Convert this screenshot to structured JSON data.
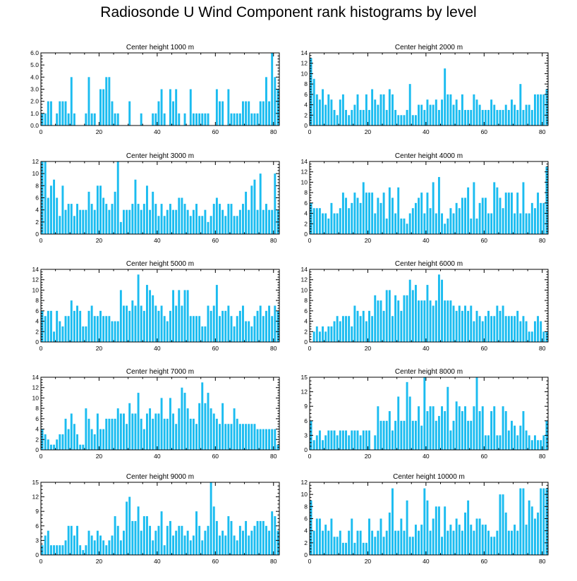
{
  "figure_title": "Radiosonde U Wind Component rank histograms by level",
  "colors": {
    "bar": "#1bbcf0",
    "axis": "#000000",
    "background": "#ffffff"
  },
  "chart_data": [
    {
      "type": "bar",
      "title": "Center height 1000 m",
      "xlim": [
        0,
        82
      ],
      "ylim": [
        0,
        6
      ],
      "xticks": [
        "0",
        "20",
        "40",
        "60",
        "80"
      ],
      "yticks": [
        "0.0",
        "1.0",
        "2.0",
        "3.0",
        "4.0",
        "5.0",
        "6.0"
      ],
      "values": [
        1,
        1,
        2,
        2,
        0,
        1,
        2,
        2,
        2,
        1,
        4,
        1,
        0,
        0,
        0,
        1,
        4,
        1,
        1,
        0,
        3,
        3,
        4,
        4,
        2,
        1,
        1,
        0,
        0,
        0,
        2,
        0,
        0,
        0,
        1,
        0,
        0,
        0,
        1,
        1,
        2,
        3,
        1,
        0,
        3,
        2,
        3,
        1,
        0,
        1,
        0,
        3,
        1,
        1,
        1,
        1,
        1,
        1,
        0,
        0,
        3,
        2,
        2,
        0,
        3,
        1,
        1,
        1,
        1,
        2,
        2,
        2,
        1,
        1,
        1,
        2,
        2,
        4,
        2,
        6,
        4,
        3
      ]
    },
    {
      "type": "bar",
      "title": "Center height 2000 m",
      "xlim": [
        0,
        82
      ],
      "ylim": [
        0,
        14
      ],
      "xticks": [
        "0",
        "20",
        "40",
        "60",
        "80"
      ],
      "yticks": [
        "0",
        "2",
        "4",
        "6",
        "8",
        "10",
        "12",
        "14"
      ],
      "values": [
        13,
        9,
        6,
        5,
        7,
        4,
        6,
        5,
        3,
        2,
        5,
        6,
        3,
        2,
        3,
        4,
        6,
        3,
        3,
        6,
        3,
        7,
        5,
        4,
        6,
        6,
        3,
        7,
        6,
        3,
        2,
        2,
        2,
        3,
        8,
        2,
        2,
        4,
        4,
        3,
        5,
        4,
        4,
        5,
        3,
        5,
        11,
        6,
        6,
        4,
        5,
        3,
        6,
        3,
        3,
        3,
        6,
        5,
        4,
        3,
        3,
        3,
        5,
        4,
        3,
        3,
        3,
        4,
        3,
        5,
        4,
        3,
        8,
        3,
        4,
        4,
        3,
        6,
        6,
        6,
        6,
        7
      ]
    },
    {
      "type": "bar",
      "title": "Center height 3000 m",
      "xlim": [
        0,
        82
      ],
      "ylim": [
        0,
        12
      ],
      "xticks": [
        "0",
        "20",
        "40",
        "60",
        "80"
      ],
      "yticks": [
        "0",
        "2",
        "4",
        "6",
        "8",
        "10",
        "12"
      ],
      "values": [
        12,
        12,
        6,
        8,
        9,
        6,
        3,
        8,
        4,
        5,
        5,
        3,
        5,
        4,
        4,
        4,
        7,
        5,
        4,
        8,
        8,
        6,
        5,
        4,
        5,
        7,
        12,
        2,
        4,
        4,
        4,
        5,
        9,
        5,
        4,
        5,
        8,
        4,
        7,
        5,
        3,
        5,
        3,
        4,
        5,
        4,
        4,
        6,
        6,
        5,
        4,
        3,
        4,
        5,
        3,
        3,
        4,
        2,
        3,
        5,
        6,
        5,
        4,
        3,
        5,
        5,
        3,
        3,
        4,
        5,
        7,
        4,
        8,
        9,
        4,
        10,
        4,
        5,
        4,
        4,
        10,
        4
      ]
    },
    {
      "type": "bar",
      "title": "Center height 4000 m",
      "xlim": [
        0,
        82
      ],
      "ylim": [
        0,
        14
      ],
      "xticks": [
        "0",
        "20",
        "40",
        "60",
        "80"
      ],
      "yticks": [
        "0",
        "2",
        "4",
        "6",
        "8",
        "10",
        "12",
        "14"
      ],
      "values": [
        6,
        5,
        5,
        5,
        4,
        4,
        3,
        6,
        4,
        4,
        5,
        8,
        7,
        5,
        6,
        8,
        7,
        6,
        10,
        8,
        8,
        8,
        4,
        7,
        6,
        8,
        3,
        9,
        7,
        4,
        9,
        3,
        3,
        2,
        4,
        5,
        6,
        7,
        8,
        4,
        8,
        5,
        10,
        4,
        11,
        4,
        2,
        3,
        5,
        4,
        6,
        5,
        7,
        7,
        9,
        3,
        10,
        3,
        6,
        7,
        7,
        4,
        4,
        10,
        9,
        7,
        5,
        8,
        8,
        8,
        4,
        8,
        4,
        10,
        4,
        4,
        6,
        5,
        8,
        6,
        6,
        13
      ]
    },
    {
      "type": "bar",
      "title": "Center height 5000 m",
      "xlim": [
        0,
        82
      ],
      "ylim": [
        0,
        14
      ],
      "xticks": [
        "0",
        "20",
        "40",
        "60",
        "80"
      ],
      "yticks": [
        "0",
        "2",
        "4",
        "6",
        "8",
        "10",
        "12",
        "14"
      ],
      "values": [
        6,
        5,
        6,
        6,
        2,
        6,
        4,
        3,
        5,
        5,
        8,
        6,
        7,
        6,
        3,
        3,
        6,
        7,
        5,
        5,
        6,
        5,
        5,
        5,
        4,
        4,
        4,
        10,
        7,
        7,
        6,
        8,
        7,
        13,
        7,
        6,
        11,
        10,
        9,
        7,
        6,
        7,
        5,
        4,
        6,
        10,
        7,
        10,
        7,
        10,
        10,
        5,
        5,
        5,
        5,
        3,
        3,
        7,
        6,
        7,
        11,
        5,
        6,
        6,
        7,
        5,
        3,
        5,
        6,
        7,
        4,
        4,
        3,
        5,
        6,
        7,
        5,
        6,
        7,
        5,
        7,
        6
      ]
    },
    {
      "type": "bar",
      "title": "Center height 6000 m",
      "xlim": [
        0,
        82
      ],
      "ylim": [
        0,
        14
      ],
      "xticks": [
        "0",
        "20",
        "40",
        "60",
        "80"
      ],
      "yticks": [
        "0",
        "2",
        "4",
        "6",
        "8",
        "10",
        "12",
        "14"
      ],
      "values": [
        0,
        2,
        3,
        2,
        3,
        2,
        3,
        3,
        4,
        5,
        4,
        5,
        5,
        5,
        3,
        7,
        6,
        5,
        6,
        4,
        6,
        5,
        9,
        8,
        8,
        6,
        10,
        10,
        5,
        9,
        8,
        6,
        9,
        9,
        12,
        10,
        11,
        8,
        8,
        8,
        11,
        8,
        7,
        8,
        13,
        12,
        8,
        8,
        8,
        7,
        6,
        7,
        6,
        7,
        6,
        7,
        4,
        6,
        5,
        4,
        5,
        6,
        5,
        5,
        7,
        6,
        7,
        5,
        5,
        5,
        5,
        6,
        4,
        5,
        4,
        2,
        2,
        4,
        5,
        4,
        2,
        2
      ]
    },
    {
      "type": "bar",
      "title": "Center height 7000 m",
      "xlim": [
        0,
        82
      ],
      "ylim": [
        0,
        14
      ],
      "xticks": [
        "0",
        "20",
        "40",
        "60",
        "80"
      ],
      "yticks": [
        "0",
        "2",
        "4",
        "6",
        "8",
        "10",
        "12",
        "14"
      ],
      "values": [
        4,
        3,
        2,
        1,
        1,
        2,
        3,
        3,
        6,
        4,
        7,
        5,
        3,
        1,
        1,
        8,
        6,
        4,
        3,
        7,
        4,
        4,
        6,
        6,
        6,
        6,
        8,
        7,
        7,
        5,
        9,
        7,
        7,
        11,
        6,
        4,
        7,
        8,
        6,
        7,
        7,
        10,
        6,
        6,
        10,
        7,
        5,
        8,
        12,
        11,
        8,
        6,
        6,
        5,
        9,
        13,
        9,
        11,
        8,
        7,
        6,
        5,
        9,
        5,
        5,
        5,
        8,
        6,
        5,
        5,
        5,
        5,
        5,
        5,
        4,
        4,
        4,
        4,
        4,
        4,
        4,
        1
      ]
    },
    {
      "type": "bar",
      "title": "Center height 8000 m",
      "xlim": [
        0,
        82
      ],
      "ylim": [
        0,
        15
      ],
      "xticks": [
        "0",
        "20",
        "40",
        "60",
        "80"
      ],
      "yticks": [
        "0",
        "3",
        "6",
        "9",
        "12",
        "15"
      ],
      "values": [
        6,
        2,
        3,
        4,
        2,
        3,
        4,
        4,
        4,
        3,
        4,
        4,
        4,
        3,
        4,
        4,
        4,
        3,
        4,
        4,
        4,
        0,
        3,
        9,
        6,
        6,
        6,
        8,
        4,
        6,
        11,
        6,
        6,
        14,
        11,
        6,
        6,
        9,
        5,
        15,
        8,
        9,
        9,
        6,
        7,
        9,
        8,
        13,
        4,
        6,
        10,
        9,
        8,
        9,
        6,
        6,
        9,
        15,
        8,
        9,
        3,
        3,
        8,
        9,
        3,
        3,
        9,
        8,
        4,
        6,
        5,
        3,
        5,
        8,
        4,
        3,
        2,
        3,
        2,
        2,
        3,
        6
      ]
    },
    {
      "type": "bar",
      "title": "Center height 9000 m",
      "xlim": [
        0,
        82
      ],
      "ylim": [
        0,
        15
      ],
      "xticks": [
        "0",
        "20",
        "40",
        "60",
        "80"
      ],
      "yticks": [
        "0",
        "3",
        "6",
        "9",
        "12",
        "15"
      ],
      "values": [
        2,
        4,
        5,
        2,
        2,
        2,
        2,
        2,
        3,
        6,
        6,
        4,
        6,
        2,
        1,
        2,
        5,
        4,
        3,
        5,
        4,
        3,
        2,
        3,
        4,
        8,
        6,
        3,
        5,
        11,
        12,
        7,
        7,
        10,
        5,
        8,
        8,
        6,
        3,
        5,
        6,
        9,
        2,
        6,
        7,
        4,
        5,
        6,
        6,
        4,
        5,
        3,
        4,
        9,
        6,
        3,
        5,
        6,
        15,
        10,
        7,
        4,
        5,
        4,
        8,
        7,
        4,
        3,
        6,
        5,
        7,
        4,
        5,
        6,
        7,
        7,
        7,
        6,
        5,
        9,
        8,
        5
      ]
    },
    {
      "type": "bar",
      "title": "Center height 10000 m",
      "xlim": [
        0,
        82
      ],
      "ylim": [
        0,
        12
      ],
      "xticks": [
        "0",
        "20",
        "40",
        "60",
        "80"
      ],
      "yticks": [
        "0",
        "2",
        "4",
        "6",
        "8",
        "10",
        "12"
      ],
      "values": [
        9,
        4,
        6,
        6,
        4,
        5,
        4,
        6,
        3,
        3,
        4,
        2,
        2,
        4,
        6,
        2,
        4,
        4,
        2,
        2,
        6,
        4,
        3,
        4,
        6,
        3,
        4,
        7,
        11,
        4,
        4,
        6,
        4,
        9,
        3,
        3,
        5,
        4,
        5,
        11,
        9,
        4,
        6,
        8,
        8,
        3,
        8,
        4,
        5,
        4,
        6,
        5,
        4,
        7,
        9,
        5,
        4,
        6,
        6,
        5,
        5,
        4,
        3,
        3,
        4,
        10,
        10,
        7,
        4,
        4,
        5,
        4,
        11,
        11,
        5,
        9,
        8,
        6,
        7,
        11,
        11,
        11
      ]
    }
  ]
}
